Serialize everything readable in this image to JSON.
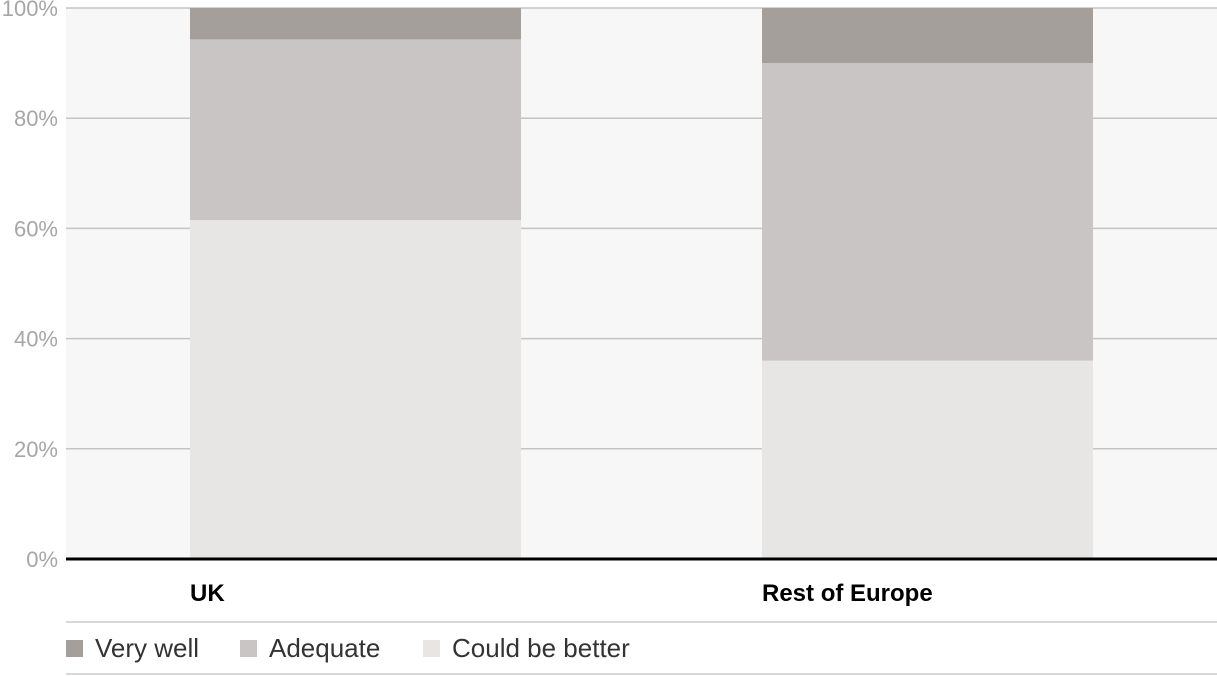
{
  "chart_data": {
    "type": "bar",
    "stacked": true,
    "categories": [
      "UK",
      "Rest of Europe"
    ],
    "series": [
      {
        "name": "Could be better",
        "values": [
          61.5,
          36.0
        ],
        "color": "#e7e6e5"
      },
      {
        "name": "Adequate",
        "values": [
          32.8,
          54.0
        ],
        "color": "#c9c5c4"
      },
      {
        "name": "Very well",
        "values": [
          5.7,
          10.0
        ],
        "color": "#a59f9b"
      }
    ],
    "ylim": [
      0,
      100
    ],
    "yticks": [
      "0%",
      "20%",
      "40%",
      "60%",
      "80%",
      "100%"
    ],
    "ytick_values": [
      0,
      20,
      40,
      60,
      80,
      100
    ],
    "grid": true,
    "legend_position": "bottom",
    "legend_order": [
      "Very well",
      "Adequate",
      "Could be better"
    ],
    "title": "",
    "xlabel": "",
    "ylabel": ""
  }
}
